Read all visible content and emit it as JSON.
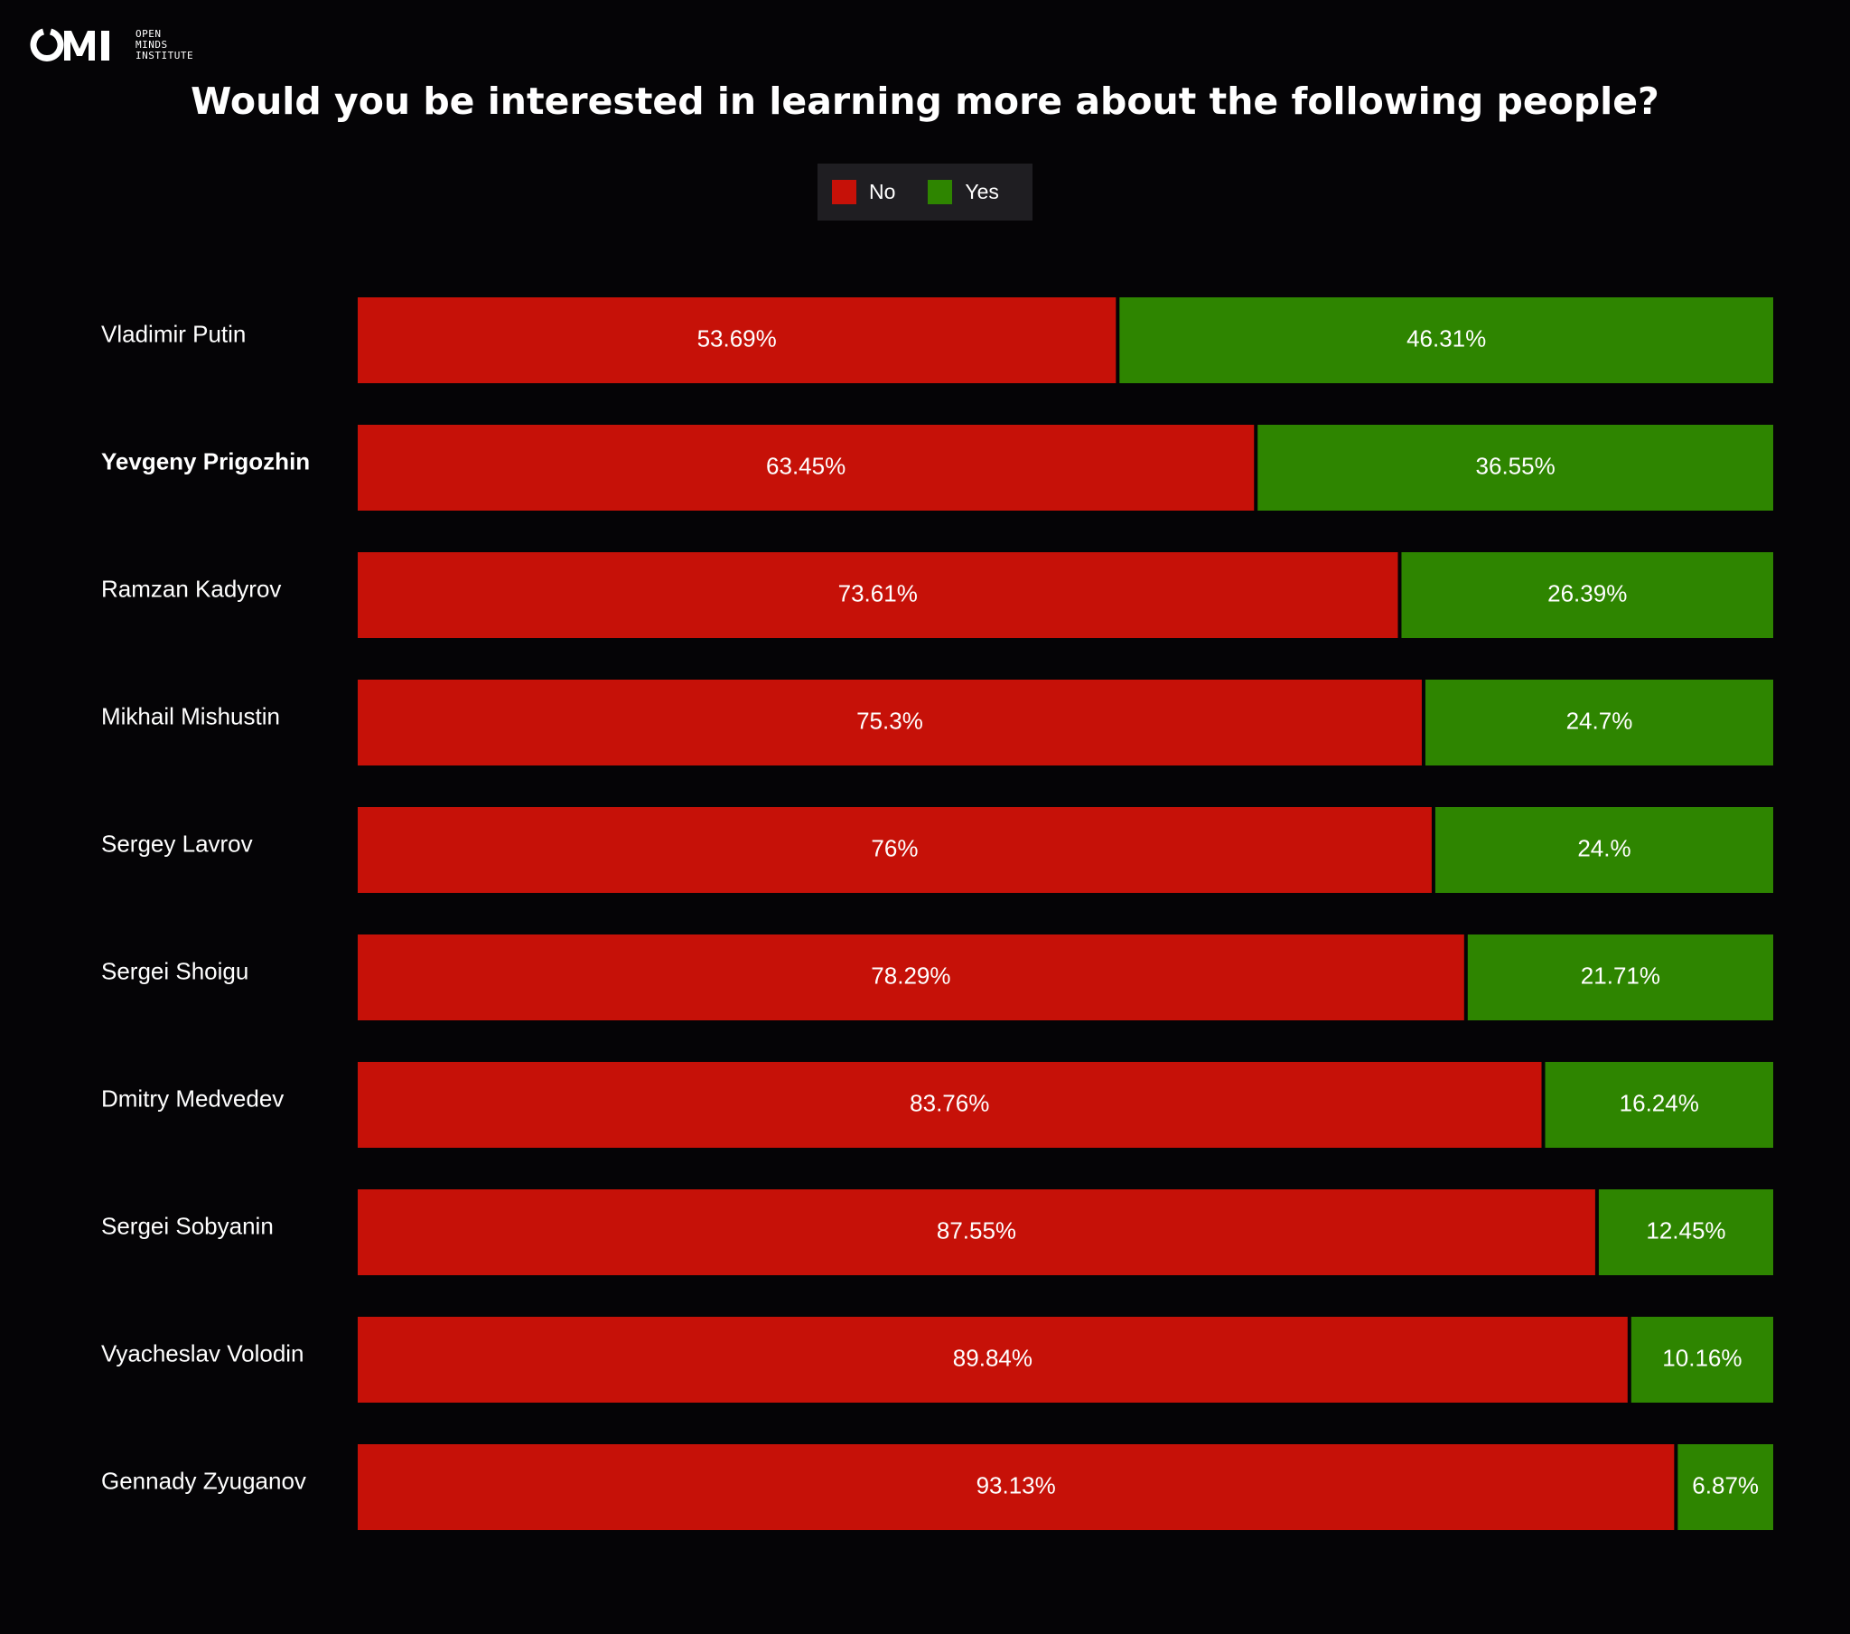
{
  "brand": {
    "logo_text": "OMI",
    "sub_lines": [
      "OPEN",
      "MINDS",
      "INSTITUTE"
    ]
  },
  "colors": {
    "no": "#c61108",
    "yes": "#2e8500",
    "background": "#050406",
    "legend_bg": "#1f1e22"
  },
  "chart_data": {
    "type": "bar",
    "orientation": "horizontal",
    "stacked": true,
    "title": "Would you be interested in learning more about the following people?",
    "legend": {
      "position": "top-center",
      "entries": [
        "No",
        "Yes"
      ]
    },
    "categories": [
      "Vladimir Putin",
      "Yevgeny Prigozhin",
      "Ramzan Kadyrov",
      "Mikhail Mishustin",
      "Sergey Lavrov",
      "Sergei Shoigu",
      "Dmitry Medvedev",
      "Sergei Sobyanin",
      "Vyacheslav Volodin",
      "Gennady Zyuganov"
    ],
    "highlighted_category": "Yevgeny Prigozhin",
    "series": [
      {
        "name": "No",
        "values": [
          53.69,
          63.45,
          73.61,
          75.3,
          76,
          78.29,
          83.76,
          87.55,
          89.84,
          93.13
        ],
        "labels": [
          "53.69%",
          "63.45%",
          "73.61%",
          "75.3%",
          "76%",
          "78.29%",
          "83.76%",
          "87.55%",
          "89.84%",
          "93.13%"
        ]
      },
      {
        "name": "Yes",
        "values": [
          46.31,
          36.55,
          26.39,
          24.7,
          24,
          21.71,
          16.24,
          12.45,
          10.16,
          6.87
        ],
        "labels": [
          "46.31%",
          "36.55%",
          "26.39%",
          "24.7%",
          "24.%",
          "21.71%",
          "16.24%",
          "12.45%",
          "10.16%",
          "6.87%"
        ]
      }
    ],
    "xlim": [
      0,
      100
    ],
    "xlabel": "",
    "ylabel": "",
    "grid": false
  }
}
